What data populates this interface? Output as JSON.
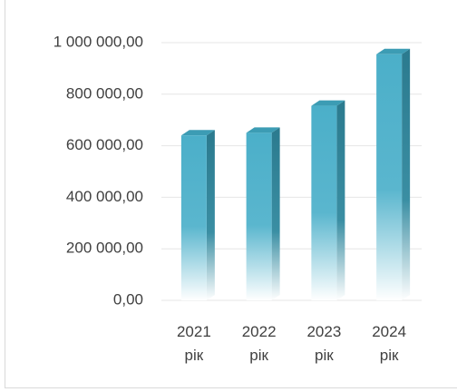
{
  "chart_data": {
    "type": "bar",
    "categories": [
      "2021 рік",
      "2022 рік",
      "2023 рік",
      "2024 рік"
    ],
    "values": [
      640000,
      650000,
      755000,
      955000
    ],
    "color": "#4bafc9",
    "ylim": [
      0,
      1000000
    ],
    "yticks": [
      {
        "value": 0,
        "label": "0,00"
      },
      {
        "value": 200000,
        "label": "200 000,00"
      },
      {
        "value": 400000,
        "label": "400 000,00"
      },
      {
        "value": 600000,
        "label": "600 000,00"
      },
      {
        "value": 800000,
        "label": "800 000,00"
      },
      {
        "value": 1000000,
        "label": "1 000 000,00"
      }
    ],
    "grid": true
  }
}
